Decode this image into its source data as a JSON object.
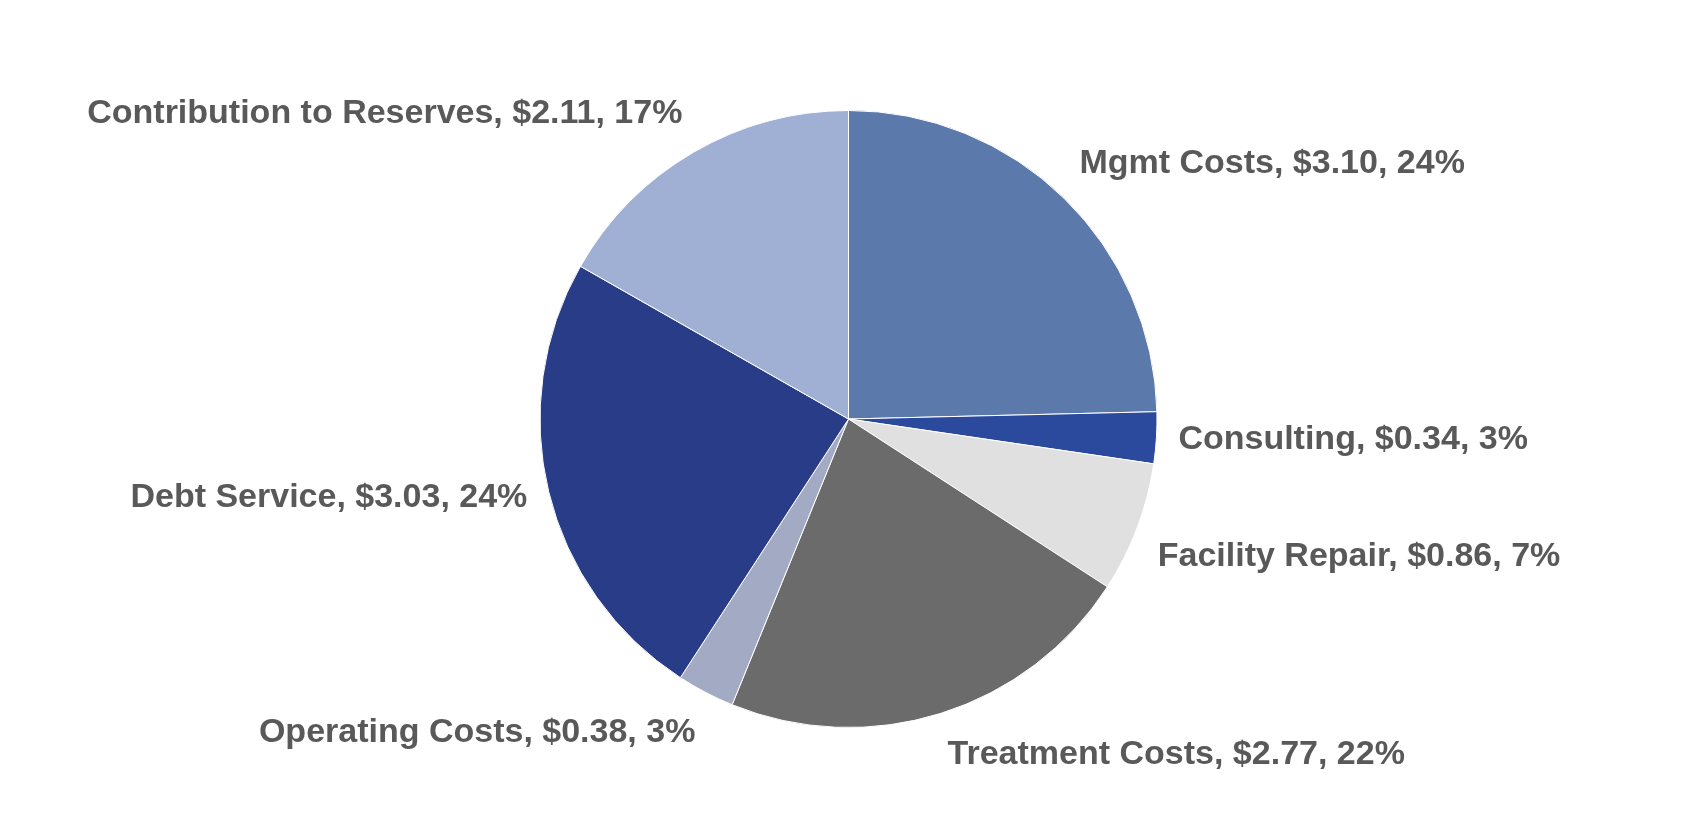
{
  "chart_data": {
    "type": "pie",
    "categories": [
      "Mgmt Costs",
      "Consulting",
      "Facility Repair",
      "Treatment Costs",
      "Operating Costs",
      "Debt Service",
      "Contribution to Reserves"
    ],
    "values": [
      3.1,
      0.34,
      0.86,
      2.77,
      0.38,
      3.03,
      2.11
    ],
    "value_labels": [
      "$3.10, 24%",
      "$0.34, 3%",
      "$0.86, 7%",
      "$2.77, 22%",
      "$0.38, 3%",
      "$3.03, 24%",
      "$2.11, 17%"
    ],
    "colors": [
      "#5b79aa",
      "#2b4a9e",
      "#e0e0e0",
      "#6b6b6b",
      "#a3abc4",
      "#283c87",
      "#a0b0d4"
    ],
    "legend": false
  }
}
